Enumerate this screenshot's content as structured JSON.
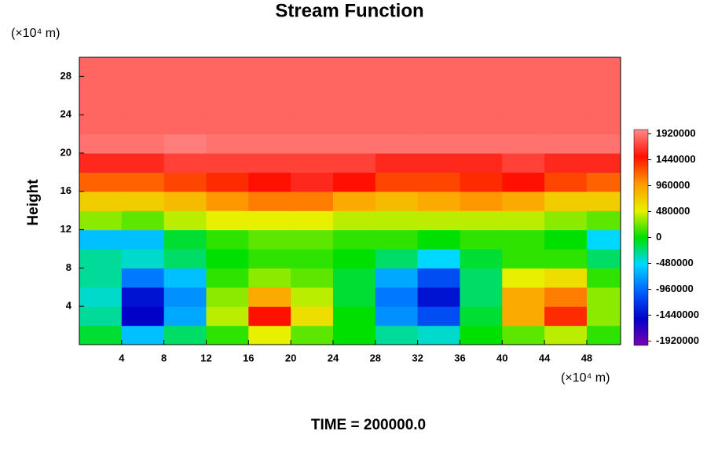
{
  "chart_data": {
    "type": "contour",
    "title": "Stream Function",
    "y_label": "Height",
    "x_unit": "(×10⁴ m)",
    "y_unit": "(×10⁴ m)",
    "annotation": "TIME = 200000.0",
    "xlim": [
      0,
      51.2
    ],
    "ylim": [
      0,
      30
    ],
    "xticks": [
      4,
      8,
      12,
      16,
      20,
      24,
      28,
      32,
      36,
      40,
      44,
      48
    ],
    "yticks": [
      4,
      8,
      12,
      16,
      20,
      24,
      28
    ],
    "clim": [
      -2000000,
      2000000
    ],
    "cticks": [
      1920000,
      1440000,
      960000,
      480000,
      0,
      -480000,
      -960000,
      -1440000,
      -1920000
    ],
    "colorscale": [
      "#7a00b0",
      "#0000c8",
      "#0060ff",
      "#00d8ff",
      "#00e000",
      "#e8f000",
      "#ff9800",
      "#ff1000",
      "#ff8a8a"
    ],
    "x": [
      2,
      6,
      10,
      14,
      18,
      22,
      26,
      30,
      34,
      38,
      42,
      46,
      50
    ],
    "y": [
      1,
      3,
      5,
      7,
      9,
      11,
      13,
      15,
      17,
      19,
      21,
      23,
      25,
      27,
      29
    ],
    "z": [
      [
        -100000,
        -600000,
        -200000,
        100000,
        500000,
        200000,
        0,
        -300000,
        -400000,
        0,
        200000,
        400000,
        100000
      ],
      [
        -300000,
        -1500000,
        -700000,
        400000,
        1500000,
        600000,
        0,
        -800000,
        -1100000,
        -100000,
        900000,
        1400000,
        300000
      ],
      [
        -400000,
        -1400000,
        -800000,
        300000,
        900000,
        400000,
        -100000,
        -900000,
        -1400000,
        -200000,
        900000,
        1100000,
        300000
      ],
      [
        -300000,
        -900000,
        -600000,
        100000,
        300000,
        200000,
        -100000,
        -700000,
        -1100000,
        -200000,
        500000,
        600000,
        100000
      ],
      [
        -300000,
        -400000,
        -200000,
        0,
        100000,
        100000,
        0,
        -200000,
        -500000,
        -100000,
        100000,
        100000,
        -200000
      ],
      [
        -600000,
        -600000,
        -100000,
        100000,
        200000,
        200000,
        100000,
        100000,
        0,
        100000,
        100000,
        0,
        -500000
      ],
      [
        300000,
        200000,
        400000,
        500000,
        500000,
        500000,
        400000,
        400000,
        400000,
        400000,
        400000,
        300000,
        200000
      ],
      [
        700000,
        700000,
        800000,
        1000000,
        1100000,
        1100000,
        900000,
        800000,
        900000,
        1000000,
        900000,
        700000,
        700000
      ],
      [
        1200000,
        1200000,
        1300000,
        1400000,
        1500000,
        1600000,
        1500000,
        1300000,
        1300000,
        1400000,
        1500000,
        1300000,
        1200000
      ],
      [
        1600000,
        1600000,
        1700000,
        1700000,
        1700000,
        1700000,
        1700000,
        1600000,
        1600000,
        1600000,
        1700000,
        1600000,
        1600000
      ],
      [
        1900000,
        1900000,
        1950000,
        1900000,
        1900000,
        1900000,
        1900000,
        1900000,
        1900000,
        1900000,
        1900000,
        1900000,
        1900000
      ],
      [
        1850000,
        1850000,
        1850000,
        1850000,
        1850000,
        1850000,
        1850000,
        1850000,
        1850000,
        1850000,
        1850000,
        1850000,
        1850000
      ],
      [
        1850000,
        1850000,
        1850000,
        1850000,
        1850000,
        1850000,
        1850000,
        1850000,
        1850000,
        1850000,
        1850000,
        1850000,
        1850000
      ],
      [
        1850000,
        1850000,
        1850000,
        1850000,
        1850000,
        1850000,
        1850000,
        1850000,
        1850000,
        1850000,
        1850000,
        1850000,
        1850000
      ],
      [
        1850000,
        1850000,
        1850000,
        1850000,
        1850000,
        1850000,
        1850000,
        1850000,
        1850000,
        1850000,
        1850000,
        1850000,
        1850000
      ]
    ]
  }
}
